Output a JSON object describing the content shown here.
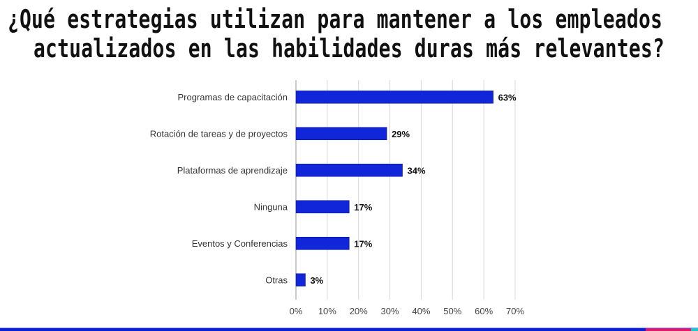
{
  "title_lines": [
    "¿Qué estrategias utilizan para mantener a los empleados",
    "actualizados en las habilidades duras más relevantes?"
  ],
  "chart_data": {
    "type": "bar",
    "orientation": "horizontal",
    "title": "¿Qué estrategias utilizan para mantener a los empleados actualizados en las habilidades duras más relevantes?",
    "categories": [
      "Programas de capacitación",
      "Rotación de tareas y de proyectos",
      "Plataformas de aprendizaje",
      "Ninguna",
      "Eventos y Conferencias",
      "Otras"
    ],
    "values": [
      63,
      29,
      34,
      17,
      17,
      3
    ],
    "labels": [
      "63%",
      "29%",
      "34%",
      "17%",
      "17%",
      "3%"
    ],
    "xlim": [
      0,
      70
    ],
    "ticks": [
      "0%",
      "10%",
      "20%",
      "30%",
      "40%",
      "50%",
      "60%",
      "70%"
    ],
    "grid": true,
    "bar_color": "#1026d8"
  },
  "colors": {
    "strip_blue": "#0a1fd6",
    "strip_pink": "#e0186a",
    "strip_teal": "#1fc8c8"
  }
}
